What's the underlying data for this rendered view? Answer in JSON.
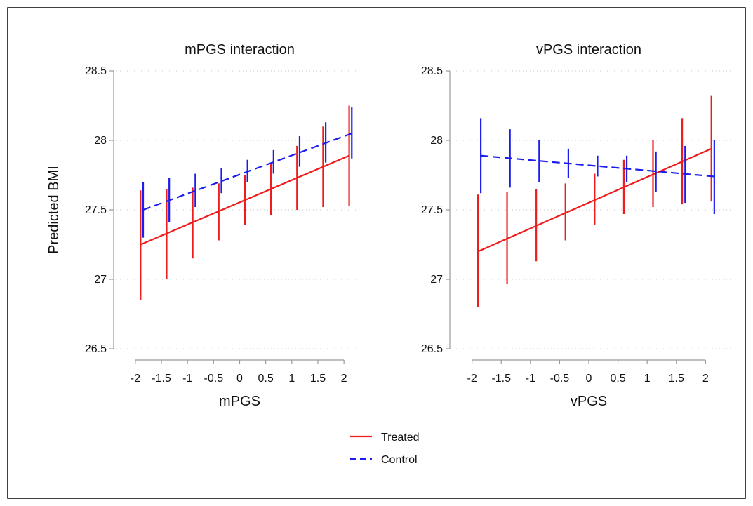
{
  "chart_data": [
    {
      "type": "line",
      "title": "mPGS interaction",
      "xlabel": "mPGS",
      "ylabel": "Predicted BMI",
      "xlim": [
        -2.2,
        2.2
      ],
      "ylim": [
        26.5,
        28.5
      ],
      "x_ticks": [
        "-2",
        "-1.5",
        "-1",
        "-0.5",
        "0",
        "0.5",
        "1",
        "1.5",
        "2"
      ],
      "y_ticks": [
        "26.5",
        "27",
        "27.5",
        "28",
        "28.5"
      ],
      "grid": "horizontal dotted",
      "series": [
        {
          "name": "Treated",
          "color": "#ee1c1c",
          "line_style": "solid",
          "x": [
            -1.9,
            -1.4,
            -0.9,
            -0.4,
            0.1,
            0.6,
            1.1,
            1.6,
            2.1
          ],
          "estimate": [
            27.25,
            27.33,
            27.41,
            27.49,
            27.57,
            27.65,
            27.73,
            27.81,
            27.89
          ],
          "lower": [
            26.85,
            27.0,
            27.15,
            27.28,
            27.39,
            27.46,
            27.5,
            27.52,
            27.53
          ],
          "upper": [
            27.64,
            27.65,
            27.66,
            27.69,
            27.75,
            27.84,
            27.96,
            28.1,
            28.25
          ]
        },
        {
          "name": "Control",
          "color": "#1c1cee",
          "line_style": "dashed",
          "x": [
            -1.85,
            -1.35,
            -0.85,
            -0.35,
            0.15,
            0.65,
            1.15,
            1.65,
            2.15
          ],
          "estimate": [
            27.5,
            27.57,
            27.64,
            27.71,
            27.78,
            27.85,
            27.92,
            27.99,
            28.05
          ],
          "lower": [
            27.3,
            27.41,
            27.52,
            27.62,
            27.7,
            27.76,
            27.81,
            27.84,
            27.87
          ],
          "upper": [
            27.7,
            27.73,
            27.76,
            27.8,
            27.86,
            27.93,
            28.03,
            28.13,
            28.24
          ]
        }
      ]
    },
    {
      "type": "line",
      "title": "vPGS interaction",
      "xlabel": "vPGS",
      "ylabel": "",
      "xlim": [
        -2.2,
        2.2
      ],
      "ylim": [
        26.5,
        28.5
      ],
      "x_ticks": [
        "-2",
        "-1.5",
        "-1",
        "-0.5",
        "0",
        "0.5",
        "1",
        "1.5",
        "2"
      ],
      "y_ticks": [
        "26.5",
        "27",
        "27.5",
        "28",
        "28.5"
      ],
      "grid": "horizontal dotted",
      "series": [
        {
          "name": "Treated",
          "color": "#ee1c1c",
          "line_style": "solid",
          "x": [
            -1.9,
            -1.4,
            -0.9,
            -0.4,
            0.1,
            0.6,
            1.1,
            1.6,
            2.1
          ],
          "estimate": [
            27.2,
            27.3,
            27.39,
            27.48,
            27.57,
            27.66,
            27.76,
            27.85,
            27.94
          ],
          "lower": [
            26.8,
            26.97,
            27.13,
            27.28,
            27.39,
            27.47,
            27.52,
            27.54,
            27.56
          ],
          "upper": [
            27.61,
            27.63,
            27.65,
            27.69,
            27.76,
            27.86,
            28.0,
            28.16,
            28.32
          ]
        },
        {
          "name": "Control",
          "color": "#1c1cee",
          "line_style": "dashed",
          "x": [
            -1.85,
            -1.35,
            -0.85,
            -0.35,
            0.15,
            0.65,
            1.15,
            1.65,
            2.15
          ],
          "estimate": [
            27.89,
            27.87,
            27.85,
            27.83,
            27.81,
            27.79,
            27.77,
            27.76,
            27.74
          ],
          "lower": [
            27.62,
            27.66,
            27.7,
            27.73,
            27.74,
            27.7,
            27.63,
            27.55,
            27.47
          ],
          "upper": [
            28.16,
            28.08,
            28.0,
            27.94,
            27.89,
            27.89,
            27.92,
            27.96,
            28.0
          ]
        }
      ]
    }
  ],
  "legend": {
    "position": "bottom-center",
    "items": [
      {
        "label": "Treated",
        "color": "#ee1c1c",
        "line_style": "solid"
      },
      {
        "label": "Control",
        "color": "#1c1cee",
        "line_style": "dashed"
      }
    ]
  },
  "colors": {
    "frame": "#000000",
    "axis": "#999999",
    "grid": "#c9c9c9",
    "background": "#ffffff"
  }
}
